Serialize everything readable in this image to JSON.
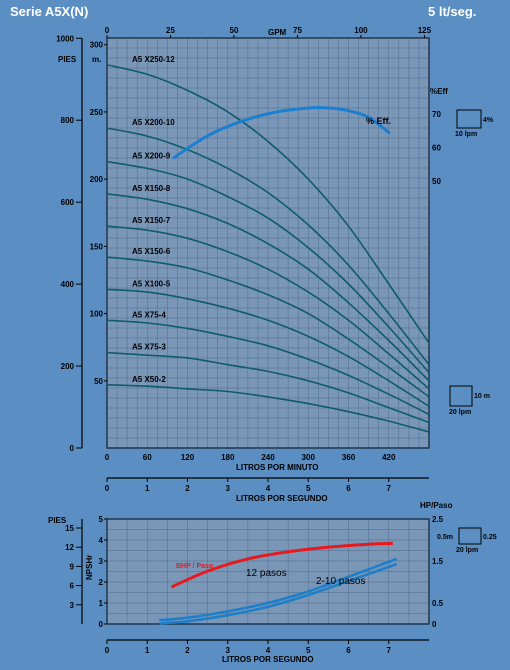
{
  "header": {
    "title": "Serie  A5X(N)",
    "rate": "5 lt/seg."
  },
  "colors": {
    "background": "#5b8fc4",
    "grid_bg": "#7a97b8",
    "curve": "#0e5c68",
    "eff": "#1a7fd0",
    "bhp": "#e8191c",
    "npsh": "#1e7fc8"
  },
  "chart_data": [
    {
      "type": "line",
      "title": "Pump performance curves",
      "top_axis": {
        "label": "GPM",
        "ticks": [
          "0",
          "25",
          "50",
          "75",
          "100",
          "125"
        ],
        "tick_values": [
          0,
          25,
          50,
          75,
          100,
          125
        ]
      },
      "x_axis": {
        "label": "LITROS POR MINUTO",
        "ticks": [
          "0",
          "60",
          "120",
          "180",
          "240",
          "300",
          "360",
          "420"
        ],
        "tick_values": [
          0,
          60,
          120,
          180,
          240,
          300,
          360,
          420
        ],
        "range": [
          0,
          480
        ]
      },
      "x2_axis": {
        "label": "LITROS POR SEGUNDO",
        "ticks": [
          "0",
          "1",
          "2",
          "3",
          "4",
          "5",
          "6",
          "7"
        ],
        "tick_values": [
          0,
          1,
          2,
          3,
          4,
          5,
          6,
          7
        ]
      },
      "y_left_feet": {
        "label": "PIES",
        "ticks": [
          "0",
          "200",
          "400",
          "600",
          "800",
          "1000"
        ],
        "tick_values": [
          0,
          200,
          400,
          600,
          800,
          1000
        ]
      },
      "y_meters": {
        "label": "m.",
        "ticks": [
          "50",
          "100",
          "150",
          "200",
          "250",
          "300"
        ],
        "tick_values": [
          50,
          100,
          150,
          200,
          250,
          300
        ],
        "range": [
          0,
          305
        ]
      },
      "y_eff": {
        "label": "%Eff",
        "ticks": [
          "50",
          "60",
          "70"
        ],
        "tick_values": [
          50,
          60,
          70
        ]
      },
      "x_points": [
        0,
        60,
        120,
        180,
        240,
        300,
        360,
        420,
        480
      ],
      "series": [
        {
          "name": "A5 X250-12",
          "values": [
            285,
            278,
            266,
            250,
            228,
            200,
            165,
            122,
            78
          ]
        },
        {
          "name": "A5 X200-10",
          "values": [
            238,
            232,
            222,
            208,
            190,
            166,
            136,
            100,
            62
          ]
        },
        {
          "name": "A5 X200-9",
          "values": [
            213,
            208,
            200,
            187,
            171,
            149,
            122,
            90,
            56
          ]
        },
        {
          "name": "A5 X150-8",
          "values": [
            189,
            185,
            178,
            167,
            152,
            133,
            108,
            80,
            50
          ]
        },
        {
          "name": "A5 X150-7",
          "values": [
            165,
            162,
            156,
            146,
            133,
            116,
            95,
            70,
            44
          ]
        },
        {
          "name": "A5 X150-6",
          "values": [
            142,
            139,
            134,
            125,
            114,
            100,
            81,
            60,
            38
          ]
        },
        {
          "name": "A5 X100-5",
          "values": [
            118,
            116,
            111,
            104,
            95,
            83,
            68,
            50,
            31
          ]
        },
        {
          "name": "A5 X75-4",
          "values": [
            95,
            93,
            89,
            83,
            76,
            66,
            54,
            40,
            25
          ]
        },
        {
          "name": "A5 X75-3",
          "values": [
            71,
            69,
            67,
            62,
            57,
            50,
            41,
            30,
            19
          ]
        },
        {
          "name": "A5 X50-2",
          "values": [
            47,
            46,
            44,
            42,
            38,
            33,
            27,
            20,
            12
          ]
        }
      ],
      "efficiency": {
        "label": "% Eff.",
        "x": [
          100,
          150,
          200,
          250,
          300,
          330,
          360,
          390,
          420
        ],
        "values": [
          57,
          63.5,
          67.8,
          70.5,
          71.8,
          71.8,
          71,
          69,
          64.5
        ]
      },
      "scale_box_eff": {
        "top": "4%",
        "bottom": "10 lpm"
      },
      "scale_box_head": {
        "right": "10 m",
        "bottom": "20 lpm"
      }
    },
    {
      "type": "line",
      "title": "NPSHr / HP per stage",
      "x_axis": {
        "label": "LITROS POR SEGUNDO",
        "ticks": [
          "0",
          "1",
          "2",
          "3",
          "4",
          "5",
          "6",
          "7"
        ],
        "tick_values": [
          0,
          1,
          2,
          3,
          4,
          5,
          6,
          7
        ],
        "range": [
          0,
          8
        ]
      },
      "y_feet": {
        "label": "PIES",
        "ticks": [
          "3",
          "6",
          "9",
          "12",
          "15"
        ],
        "tick_values": [
          3,
          6,
          9,
          12,
          15
        ]
      },
      "y_npsh": {
        "label": "NPSHr",
        "ticks": [
          "0",
          "1",
          "2",
          "3",
          "4",
          "5"
        ],
        "tick_values": [
          0,
          1,
          2,
          3,
          4,
          5
        ],
        "range": [
          0,
          5
        ]
      },
      "y_hp": {
        "label": "HP/Paso",
        "ticks": [
          "0",
          "0.5",
          "1.5",
          "2.5"
        ],
        "tick_values": [
          0,
          0.5,
          1.5,
          2.5
        ],
        "range": [
          0,
          2.5
        ]
      },
      "series": [
        {
          "name": "BHP / Paso",
          "x": [
            1.6,
            2.5,
            3.5,
            4.5,
            5.5,
            6.5,
            7.1
          ],
          "values": [
            0.88,
            1.26,
            1.55,
            1.72,
            1.83,
            1.9,
            1.92
          ]
        },
        {
          "name": "12 pasos",
          "x": [
            1.3,
            2,
            3,
            4,
            5,
            6,
            7.2
          ],
          "values": [
            0.18,
            0.3,
            0.6,
            1.0,
            1.55,
            2.25,
            3.1
          ]
        },
        {
          "name": "2-10 pasos",
          "x": [
            1.3,
            2,
            3,
            4,
            5,
            6,
            7.2
          ],
          "values": [
            0.03,
            0.13,
            0.42,
            0.82,
            1.38,
            2.05,
            2.85
          ]
        }
      ],
      "labels": {
        "bhp": "BHP / Paso",
        "twelve": "12 pasos",
        "two_ten": "2-10 pasos"
      },
      "scale_box": {
        "left": "0.5m",
        "right": "0.25",
        "bottom": "20 lpm"
      }
    }
  ]
}
